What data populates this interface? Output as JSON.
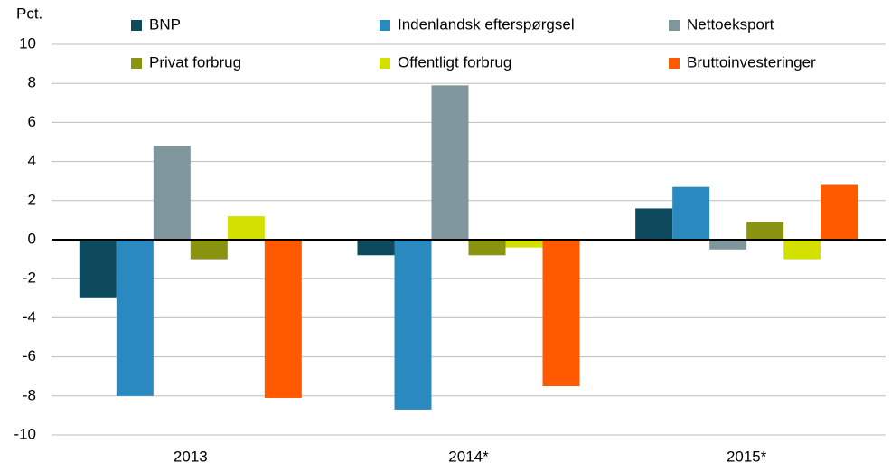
{
  "chart_data": {
    "type": "bar",
    "y_label": "Pct.",
    "categories": [
      "2013",
      "2014*",
      "2015*"
    ],
    "series": [
      {
        "name": "BNP",
        "color": "#0d4a5e",
        "values": [
          -3.0,
          -0.8,
          1.6
        ]
      },
      {
        "name": "Indenlandsk efterspørgsel",
        "color": "#2a8abf",
        "values": [
          -8.0,
          -8.7,
          2.7
        ]
      },
      {
        "name": "Nettoeksport",
        "color": "#7f979c",
        "values": [
          4.8,
          7.9,
          -0.5
        ]
      },
      {
        "name": "Privat forbrug",
        "color": "#8a9410",
        "values": [
          -1.0,
          -0.8,
          0.9
        ]
      },
      {
        "name": "Offentligt forbrug",
        "color": "#d4e000",
        "values": [
          1.2,
          -0.4,
          -1.0
        ]
      },
      {
        "name": "Bruttoinvesteringer",
        "color": "#ff5a00",
        "values": [
          -8.1,
          -7.5,
          2.8
        ]
      }
    ],
    "ylim": [
      -10,
      10
    ],
    "yticks": [
      -10,
      -8,
      -6,
      -4,
      -2,
      0,
      2,
      4,
      6,
      8,
      10
    ],
    "grid": true
  }
}
